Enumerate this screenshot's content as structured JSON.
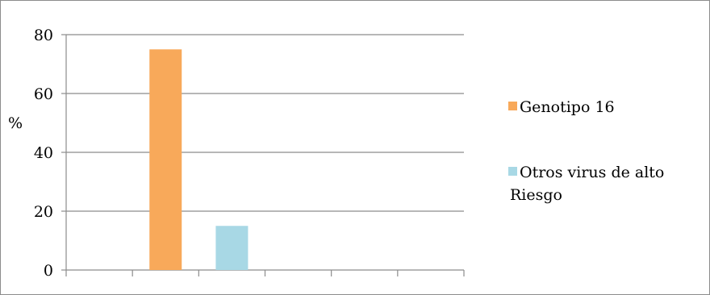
{
  "chart_data": {
    "type": "bar",
    "title": "",
    "xlabel": "",
    "ylabel": "%",
    "ylim": [
      0,
      80
    ],
    "yticks": [
      0,
      20,
      40,
      60,
      80
    ],
    "grid": true,
    "legend_position": "right",
    "categories": [
      "",
      "",
      "",
      "",
      "",
      ""
    ],
    "series": [
      {
        "name": "Genotipo 16",
        "color": "#F8A95A",
        "values": [
          null,
          75,
          null,
          null,
          null,
          null
        ]
      },
      {
        "name": "Otros virus de alto Riesgo",
        "color": "#A8D8E5",
        "values": [
          null,
          null,
          15,
          null,
          null,
          null
        ]
      }
    ]
  }
}
